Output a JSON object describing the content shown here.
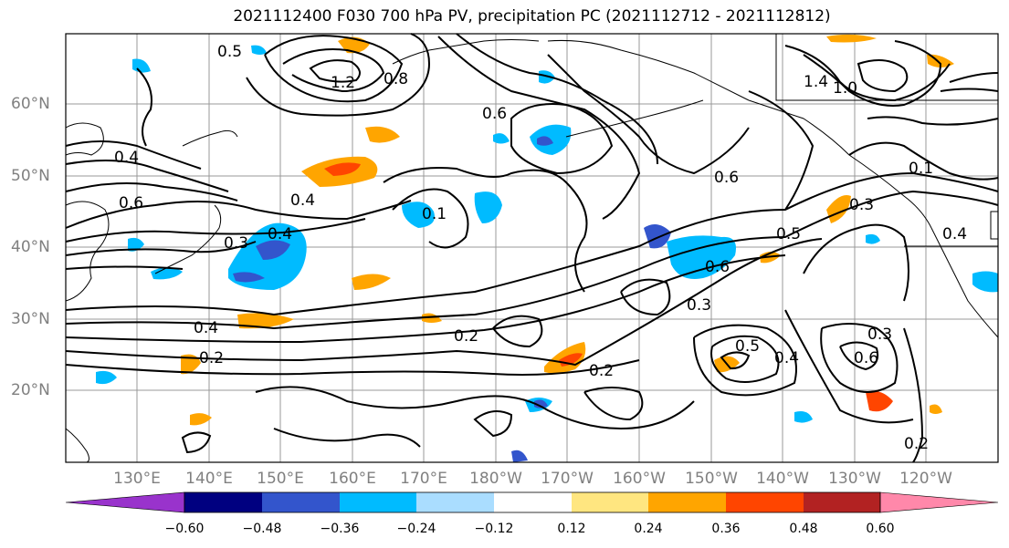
{
  "title": "2021112400 F030 700 hPa PV, precipitation PC (2021112712 - 2021112812)",
  "lat_labels": [
    "60°N",
    "50°N",
    "40°N",
    "30°N",
    "20°N"
  ],
  "lon_labels": [
    "130°E",
    "140°E",
    "150°E",
    "160°E",
    "170°E",
    "180°W",
    "170°W",
    "160°W",
    "150°W",
    "140°W",
    "130°W",
    "120°W"
  ],
  "colorbar": {
    "tick_labels": [
      "−0.60",
      "−0.48",
      "−0.36",
      "−0.24",
      "−0.12",
      "0.12",
      "0.24",
      "0.36",
      "0.48",
      "0.60"
    ],
    "colors": [
      "#9933cc",
      "#000080",
      "#3355cc",
      "#00bbff",
      "#aaddff",
      "#ffffff",
      "#ffe680",
      "#ffa500",
      "#ff4500",
      "#b22222",
      "#ff88aa"
    ]
  },
  "contour_labels": [
    "0.5",
    "1.2",
    "0.8",
    "0.6",
    "0.4",
    "0.3",
    "0.2",
    "0.1",
    "1.4",
    "1.0"
  ],
  "colors": {
    "contour": "#000000",
    "coastline": "#000000",
    "grid": "#999999",
    "axis_label": "#808080"
  }
}
